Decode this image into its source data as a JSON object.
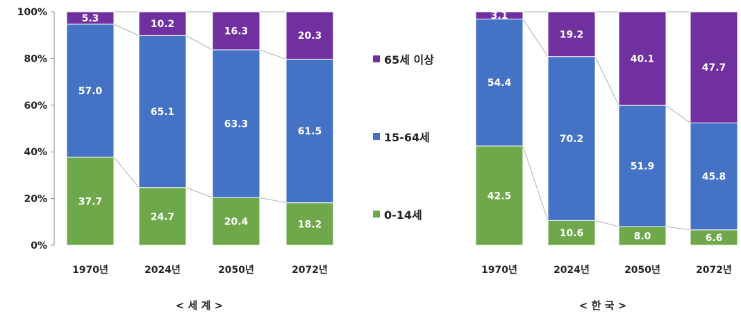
{
  "chart_data": {
    "type": "bar",
    "stacked": true,
    "y_unit": "%",
    "ylim": [
      0,
      100
    ],
    "y_ticks": [
      "0%",
      "20%",
      "40%",
      "60%",
      "80%",
      "100%"
    ],
    "legend_position": "center",
    "grid": false,
    "series": [
      {
        "name": "0-14세",
        "color": "#6ea84a"
      },
      {
        "name": "15-64세",
        "color": "#4472c4"
      },
      {
        "name": "65세 이상",
        "color": "#7030a0"
      }
    ],
    "groups": [
      {
        "title": "< 세 계 >",
        "categories": [
          "1970년",
          "2024년",
          "2050년",
          "2072년"
        ],
        "values": {
          "0-14세": [
            37.7,
            24.7,
            20.4,
            18.2
          ],
          "15-64세": [
            57.0,
            65.1,
            63.3,
            61.5
          ],
          "65세 이상": [
            5.3,
            10.2,
            16.3,
            20.3
          ]
        },
        "labels": {
          "0-14세": [
            "37.7",
            "24.7",
            "20.4",
            "18.2"
          ],
          "15-64세": [
            "57.0",
            "65.1",
            "63.3",
            "61.5"
          ],
          "65세 이상": [
            "5.3",
            "10.2",
            "16.3",
            "20.3"
          ]
        }
      },
      {
        "title": "< 한 국 >",
        "categories": [
          "1970년",
          "2024년",
          "2050년",
          "2072년"
        ],
        "values": {
          "0-14세": [
            42.5,
            10.6,
            8.0,
            6.6
          ],
          "15-64세": [
            54.4,
            70.2,
            51.9,
            45.8
          ],
          "65세 이상": [
            3.1,
            19.2,
            40.1,
            47.7
          ]
        },
        "labels": {
          "0-14세": [
            "42.5",
            "10.6",
            "8.0",
            "6.6"
          ],
          "15-64세": [
            "54.4",
            "70.2",
            "51.9",
            "45.8"
          ],
          "65세 이상": [
            "3.1",
            "19.2",
            "40.1",
            "47.7"
          ]
        }
      }
    ]
  },
  "legend": {
    "items": [
      "65세 이상",
      "15-64세",
      "0-14세"
    ]
  }
}
